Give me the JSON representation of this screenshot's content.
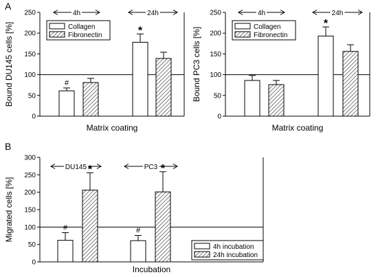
{
  "colors": {
    "bar_fill": "#ffffff",
    "hatch": "#444444",
    "line": "#000000"
  },
  "chart_data": [
    {
      "panel": "A",
      "type": "bar",
      "ylabel": "Bound DU145 cells [%]",
      "xlabel": "Matrix coating",
      "ylim": [
        0,
        250
      ],
      "yticks": [
        0,
        50,
        100,
        150,
        200,
        250
      ],
      "reference_line": 100,
      "groups": [
        {
          "label": "4h",
          "x_center": 0
        },
        {
          "label": "24h",
          "x_center": 1
        }
      ],
      "series": [
        {
          "name": "Collagen",
          "pattern": "open",
          "values": [
            61,
            178
          ],
          "errors": [
            7,
            20
          ],
          "marks": [
            "#",
            "*"
          ]
        },
        {
          "name": "Fibronectin",
          "pattern": "hatched",
          "values": [
            81,
            139
          ],
          "errors": [
            10,
            15
          ],
          "marks": [
            "",
            ""
          ]
        }
      ],
      "legend": {
        "placement": "top-left",
        "entries": [
          "Collagen",
          "Fibronectin"
        ]
      }
    },
    {
      "panel": "",
      "type": "bar",
      "ylabel": "Bound PC3 cells [%]",
      "xlabel": "Matrix coating",
      "ylim": [
        0,
        250
      ],
      "yticks": [
        0,
        50,
        100,
        150,
        200,
        250
      ],
      "reference_line": 100,
      "groups": [
        {
          "label": "4h"
        },
        {
          "label": "24h"
        }
      ],
      "series": [
        {
          "name": "Collagen",
          "pattern": "open",
          "values": [
            86,
            193
          ],
          "errors": [
            12,
            22
          ],
          "marks": [
            "",
            "*"
          ]
        },
        {
          "name": "Fibronectin",
          "pattern": "hatched",
          "values": [
            76,
            156
          ],
          "errors": [
            10,
            16
          ],
          "marks": [
            "",
            ""
          ]
        }
      ],
      "legend": {
        "placement": "top-left",
        "entries": [
          "Collagen",
          "Fibronectin"
        ]
      }
    },
    {
      "panel": "B",
      "type": "bar",
      "ylabel": "Migrated cells [%]",
      "xlabel": "Incubation",
      "ylim": [
        0,
        300
      ],
      "yticks": [
        0,
        50,
        100,
        150,
        200,
        250,
        300
      ],
      "reference_line": 100,
      "groups": [
        {
          "label": "DU145"
        },
        {
          "label": "PC3"
        }
      ],
      "series": [
        {
          "name": "4h incubation",
          "pattern": "open",
          "values": [
            62,
            61
          ],
          "errors": [
            22,
            15
          ],
          "marks": [
            "#",
            "#"
          ]
        },
        {
          "name": "24h incubation",
          "pattern": "hatched",
          "values": [
            206,
            201
          ],
          "errors": [
            50,
            58
          ],
          "marks": [
            "*",
            "*"
          ]
        }
      ],
      "legend": {
        "placement": "bottom-right",
        "entries": [
          "4h incubation",
          "24h incubation"
        ]
      }
    }
  ]
}
